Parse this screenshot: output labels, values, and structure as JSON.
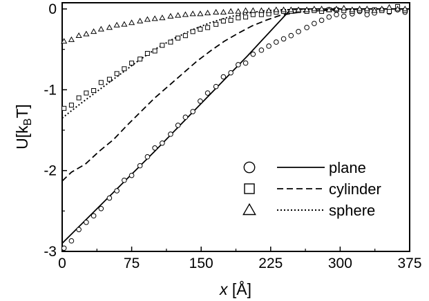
{
  "chart_data": {
    "type": "scatter",
    "title": "",
    "xlabel": {
      "symbol": "x",
      "unit": " [Å]"
    },
    "ylabel": {
      "main": "U[k",
      "sub": "B",
      "end": "T]"
    },
    "xlim": [
      0,
      375
    ],
    "ylim": [
      -3,
      0.05
    ],
    "xticks": [
      "0",
      "75",
      "150",
      "225",
      "300",
      "375"
    ],
    "yticks": [
      "0",
      "-1",
      "-2",
      "-3"
    ],
    "legend_position": "lower-right",
    "legend": [
      {
        "marker": "circle",
        "line": "solid",
        "label": "plane"
      },
      {
        "marker": "square",
        "line": "dashed",
        "label": "cylinder"
      },
      {
        "marker": "triangle",
        "line": "dotted",
        "label": "sphere"
      }
    ],
    "lines": [
      {
        "name": "plane",
        "style": "solid",
        "x": [
          0,
          50,
          100,
          150,
          200,
          247,
          375
        ],
        "y": [
          -2.9,
          -2.33,
          -1.76,
          -1.17,
          -0.58,
          0,
          0
        ]
      },
      {
        "name": "cylinder",
        "style": "dashed",
        "x": [
          0,
          10,
          25,
          40,
          55,
          70,
          85,
          100,
          115,
          130,
          145,
          160,
          175,
          190,
          205,
          220,
          235,
          250,
          265,
          280,
          300,
          330,
          360,
          375
        ],
        "y": [
          -2.13,
          -2.02,
          -1.92,
          -1.76,
          -1.62,
          -1.44,
          -1.27,
          -1.1,
          -0.95,
          -0.8,
          -0.65,
          -0.52,
          -0.4,
          -0.3,
          -0.21,
          -0.14,
          -0.08,
          -0.05,
          -0.03,
          -0.02,
          -0.01,
          0,
          0,
          0
        ]
      },
      {
        "name": "sphere",
        "style": "dotted",
        "x": [
          0,
          20,
          40,
          60,
          80,
          100,
          120,
          140,
          160,
          180,
          200,
          220,
          240,
          270,
          300,
          340,
          375
        ],
        "y": [
          -1.35,
          -1.17,
          -1.0,
          -0.83,
          -0.66,
          -0.5,
          -0.37,
          -0.26,
          -0.17,
          -0.1,
          -0.05,
          -0.02,
          -0.01,
          0,
          0,
          0,
          0
        ]
      }
    ],
    "points": {
      "circle": {
        "x": [
          2,
          10,
          18,
          26,
          34,
          42,
          51,
          59,
          67,
          75,
          84,
          92,
          100,
          108,
          117,
          125,
          133,
          141,
          149,
          157,
          166,
          174,
          182,
          190,
          198,
          206,
          215,
          223,
          231,
          239,
          247,
          255,
          264,
          272,
          280,
          288,
          296,
          304,
          313,
          321,
          329,
          337,
          345,
          353,
          362,
          370
        ],
        "y": [
          -2.96,
          -2.87,
          -2.73,
          -2.64,
          -2.56,
          -2.47,
          -2.34,
          -2.25,
          -2.12,
          -2.06,
          -1.94,
          -1.83,
          -1.72,
          -1.66,
          -1.55,
          -1.44,
          -1.34,
          -1.27,
          -1.14,
          -1.04,
          -0.96,
          -0.84,
          -0.79,
          -0.69,
          -0.67,
          -0.56,
          -0.51,
          -0.46,
          -0.41,
          -0.37,
          -0.33,
          -0.28,
          -0.23,
          -0.18,
          -0.14,
          -0.1,
          -0.07,
          -0.09,
          -0.06,
          -0.03,
          -0.07,
          -0.05,
          -0.01,
          -0.04,
          -0.01,
          -0.04
        ]
      },
      "square": {
        "x": [
          2,
          10,
          18,
          26,
          34,
          42,
          51,
          59,
          67,
          75,
          84,
          92,
          100,
          108,
          117,
          125,
          133,
          141,
          149,
          157,
          166,
          174,
          182,
          190,
          198,
          206,
          215,
          223,
          231,
          239,
          247,
          255,
          264,
          272,
          280,
          288,
          296,
          304,
          313,
          321,
          329,
          337,
          345,
          353,
          362,
          370
        ],
        "y": [
          -1.23,
          -1.19,
          -1.1,
          -1.04,
          -1.01,
          -0.91,
          -0.87,
          -0.8,
          -0.74,
          -0.67,
          -0.62,
          -0.55,
          -0.52,
          -0.45,
          -0.41,
          -0.36,
          -0.33,
          -0.28,
          -0.25,
          -0.23,
          -0.19,
          -0.15,
          -0.14,
          -0.11,
          -0.1,
          -0.07,
          -0.07,
          -0.06,
          -0.04,
          -0.03,
          -0.03,
          -0.02,
          -0.03,
          -0.02,
          -0.03,
          -0.01,
          -0.01,
          -0.02,
          -0.03,
          -0.02,
          -0.02,
          -0.01,
          -0.02,
          -0.03,
          0.03,
          -0.02
        ]
      },
      "triangle": {
        "x": [
          2,
          10,
          18,
          26,
          34,
          42,
          51,
          59,
          67,
          75,
          84,
          92,
          100,
          108,
          117,
          125,
          133,
          141,
          149,
          157,
          166,
          174,
          182,
          190,
          198,
          206,
          215,
          223,
          231,
          239,
          247,
          255,
          264,
          272,
          280,
          288,
          296,
          304,
          313,
          321,
          329,
          337,
          345,
          353,
          362,
          370
        ],
        "y": [
          -0.4,
          -0.38,
          -0.33,
          -0.31,
          -0.28,
          -0.25,
          -0.23,
          -0.2,
          -0.19,
          -0.17,
          -0.15,
          -0.13,
          -0.12,
          -0.11,
          -0.09,
          -0.08,
          -0.07,
          -0.06,
          -0.06,
          -0.05,
          -0.04,
          -0.04,
          -0.03,
          -0.03,
          -0.02,
          -0.02,
          -0.02,
          -0.02,
          -0.01,
          -0.01,
          -0.01,
          -0.01,
          -0.01,
          0.0,
          0.0,
          -0.01,
          0.0,
          0.01,
          -0.01,
          0.0,
          0.0,
          -0.02,
          0.0,
          0.02,
          0.0,
          0.0
        ]
      }
    }
  }
}
